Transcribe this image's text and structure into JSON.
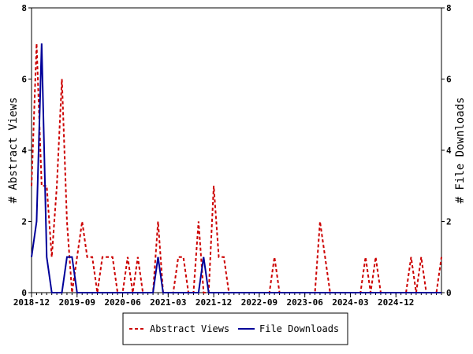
{
  "chart_data": {
    "type": "line",
    "x_tick_labels": [
      "2018-12",
      "2019-09",
      "2020-06",
      "2021-03",
      "2021-12",
      "2022-09",
      "2023-06",
      "2024-03",
      "2024-12"
    ],
    "y_ticks": [
      "0",
      "2",
      "4",
      "6",
      "8"
    ],
    "ylim": [
      0,
      8
    ],
    "ylabel_left": "# Abstract Views",
    "ylabel_right": "# File Downloads",
    "legend_position": "bottom-center",
    "x_months": [
      "2018-12",
      "2019-01",
      "2019-02",
      "2019-03",
      "2019-04",
      "2019-05",
      "2019-06",
      "2019-07",
      "2019-08",
      "2019-09",
      "2019-10",
      "2019-11",
      "2019-12",
      "2020-01",
      "2020-02",
      "2020-03",
      "2020-04",
      "2020-05",
      "2020-06",
      "2020-07",
      "2020-08",
      "2020-09",
      "2020-10",
      "2020-11",
      "2020-12",
      "2021-01",
      "2021-02",
      "2021-03",
      "2021-04",
      "2021-05",
      "2021-06",
      "2021-07",
      "2021-08",
      "2021-09",
      "2021-10",
      "2021-11",
      "2021-12",
      "2022-01",
      "2022-02",
      "2022-03",
      "2022-04",
      "2022-05",
      "2022-06",
      "2022-07",
      "2022-08",
      "2022-09",
      "2022-10",
      "2022-11",
      "2022-12",
      "2023-01",
      "2023-02",
      "2023-03",
      "2023-04",
      "2023-05",
      "2023-06",
      "2023-07",
      "2023-08",
      "2023-09",
      "2023-10",
      "2023-11",
      "2023-12",
      "2024-01",
      "2024-02",
      "2024-03",
      "2024-04",
      "2024-05",
      "2024-06",
      "2024-07",
      "2024-08",
      "2024-09",
      "2024-10",
      "2024-11",
      "2024-12",
      "2025-01",
      "2025-02",
      "2025-03",
      "2025-04",
      "2025-05",
      "2025-06",
      "2025-07",
      "2025-08",
      "2025-09"
    ],
    "series": [
      {
        "name": "Abstract Views",
        "color": "#cc0000",
        "style": "dashed",
        "values": [
          3,
          7,
          3,
          3,
          1,
          3,
          6,
          2,
          0,
          1,
          2,
          1,
          1,
          0,
          1,
          1,
          1,
          0,
          0,
          1,
          0,
          1,
          0,
          0,
          0,
          2,
          0,
          0,
          0,
          1,
          1,
          0,
          0,
          2,
          0,
          0,
          3,
          1,
          1,
          0,
          0,
          0,
          0,
          0,
          0,
          0,
          0,
          0,
          1,
          0,
          0,
          0,
          0,
          0,
          0,
          0,
          0,
          2,
          1,
          0,
          0,
          0,
          0,
          0,
          0,
          0,
          1,
          0,
          1,
          0,
          0,
          0,
          0,
          0,
          0,
          1,
          0,
          1,
          0,
          0,
          0,
          1
        ]
      },
      {
        "name": "File Downloads",
        "color": "#000099",
        "style": "solid",
        "values": [
          1,
          2,
          7,
          1,
          0,
          0,
          0,
          1,
          1,
          0,
          0,
          0,
          0,
          0,
          0,
          0,
          0,
          0,
          0,
          0,
          0,
          0,
          0,
          0,
          0,
          1,
          0,
          0,
          0,
          0,
          0,
          0,
          0,
          0,
          1,
          0,
          0,
          0,
          0,
          0,
          0,
          0,
          0,
          0,
          0,
          0,
          0,
          0,
          0,
          0,
          0,
          0,
          0,
          0,
          0,
          0,
          0,
          0,
          0,
          0,
          0,
          0,
          0,
          0,
          0,
          0,
          0,
          0,
          0,
          0,
          0,
          0,
          0,
          0,
          0,
          0,
          0,
          0,
          0,
          0,
          0,
          0
        ]
      }
    ]
  }
}
